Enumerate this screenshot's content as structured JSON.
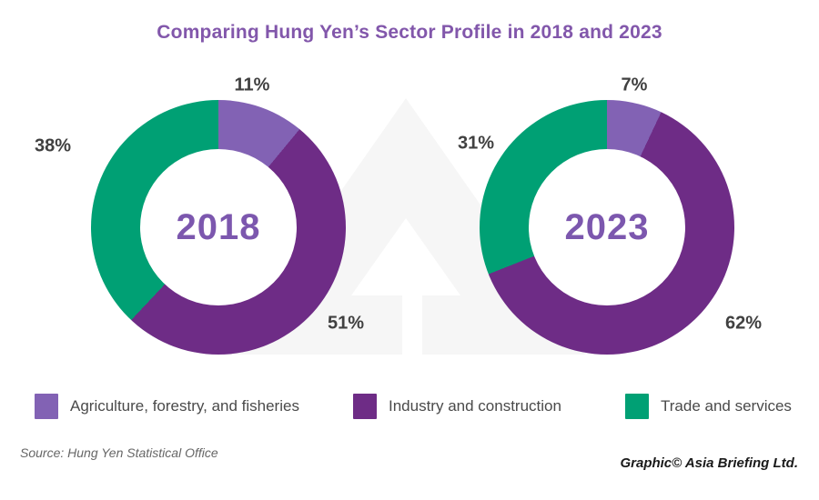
{
  "title": "Comparing Hung Yen’s Sector Profile in 2018 and 2023",
  "source": "Source: Hung Yen Statistical Office",
  "credit": "Graphic© Asia Briefing Ltd.",
  "colors": {
    "agriculture": "#8262b4",
    "industry": "#6e2c86",
    "trade": "#00a074",
    "title_text": "#8257ab",
    "year_text": "#7c57ae",
    "label_text": "#404040",
    "watermark": "#f6f6f6"
  },
  "legend": {
    "items": [
      {
        "label": "Agriculture, forestry, and fisheries",
        "color": "#8262b4"
      },
      {
        "label": "Industry and construction",
        "color": "#6e2c86"
      },
      {
        "label": "Trade and services",
        "color": "#00a074"
      }
    ]
  },
  "chart_data": [
    {
      "type": "pie",
      "subtype": "donut",
      "title": "2018",
      "categories": [
        "Agriculture, forestry, and fisheries",
        "Industry and construction",
        "Trade and services"
      ],
      "values": [
        11,
        51,
        38
      ],
      "unit": "%",
      "labels": [
        "11%",
        "51%",
        "38%"
      ],
      "colors": [
        "#8262b4",
        "#6e2c86",
        "#00a074"
      ],
      "start_angle_deg": 0,
      "direction": "clockwise",
      "center_label": "2018",
      "legend_position": "bottom"
    },
    {
      "type": "pie",
      "subtype": "donut",
      "title": "2023",
      "categories": [
        "Agriculture, forestry, and fisheries",
        "Industry and construction",
        "Trade and services"
      ],
      "values": [
        7,
        62,
        31
      ],
      "unit": "%",
      "labels": [
        "7%",
        "62%",
        "31%"
      ],
      "colors": [
        "#8262b4",
        "#6e2c86",
        "#00a074"
      ],
      "start_angle_deg": 0,
      "direction": "clockwise",
      "center_label": "2023",
      "legend_position": "bottom"
    }
  ]
}
